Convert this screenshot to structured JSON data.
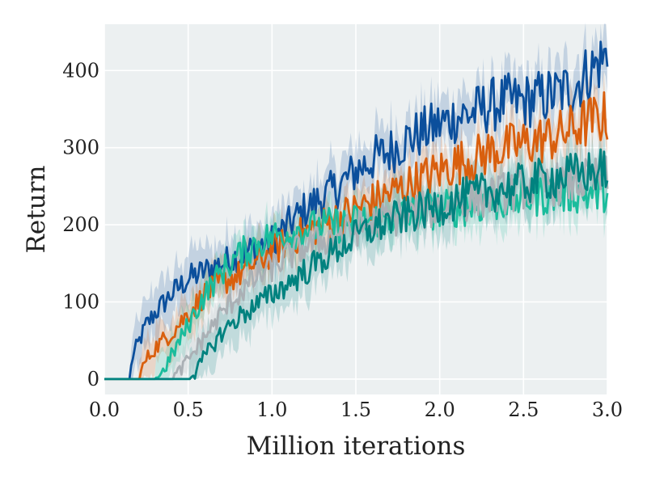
{
  "chart_data": {
    "type": "line",
    "title": "",
    "xlabel": "Million iterations",
    "ylabel": "Return",
    "xlim": [
      0.0,
      3.0
    ],
    "ylim": [
      -20,
      460
    ],
    "xticks": [
      0.0,
      0.5,
      1.0,
      1.5,
      2.0,
      2.5,
      3.0
    ],
    "xtick_labels": [
      "0.0",
      "0.5",
      "1.0",
      "1.5",
      "2.0",
      "2.5",
      "3.0"
    ],
    "yticks": [
      0,
      100,
      200,
      300,
      400
    ],
    "ytick_labels": [
      "0",
      "100",
      "200",
      "300",
      "400"
    ],
    "grid": true,
    "background": "#ecf0f1",
    "grid_color": "#ffffff",
    "legend": "none",
    "series": [
      {
        "color": "#0b4f9c",
        "band": 30,
        "x": [
          0,
          0.15,
          0.17,
          0.25,
          0.3,
          0.4,
          0.5,
          0.6,
          0.7,
          0.8,
          0.9,
          1.0,
          1.1,
          1.2,
          1.3,
          1.4,
          1.5,
          1.6,
          1.7,
          1.8,
          1.9,
          2.0,
          2.1,
          2.2,
          2.3,
          2.4,
          2.5,
          2.6,
          2.7,
          2.8,
          2.9,
          3.0
        ],
        "y": [
          0,
          0,
          30,
          70,
          85,
          110,
          130,
          140,
          150,
          160,
          170,
          180,
          200,
          220,
          235,
          250,
          270,
          285,
          295,
          310,
          320,
          330,
          340,
          345,
          355,
          360,
          360,
          365,
          370,
          380,
          400,
          420
        ]
      },
      {
        "color": "#d95f0e",
        "band": 25,
        "x": [
          0,
          0.2,
          0.25,
          0.3,
          0.4,
          0.5,
          0.6,
          0.7,
          0.8,
          0.9,
          1.0,
          1.1,
          1.2,
          1.3,
          1.4,
          1.5,
          1.6,
          1.7,
          1.8,
          1.9,
          2.0,
          2.1,
          2.2,
          2.3,
          2.4,
          2.5,
          2.6,
          2.7,
          2.8,
          2.9,
          3.0
        ],
        "y": [
          0,
          0,
          25,
          40,
          60,
          85,
          110,
          125,
          135,
          150,
          165,
          180,
          190,
          200,
          210,
          220,
          230,
          240,
          250,
          260,
          270,
          280,
          285,
          295,
          300,
          305,
          310,
          315,
          325,
          335,
          340
        ]
      },
      {
        "color": "#1abc9c",
        "band": 25,
        "x": [
          0,
          0.3,
          0.35,
          0.4,
          0.5,
          0.6,
          0.7,
          0.8,
          0.9,
          1.0,
          1.1,
          1.2,
          1.3,
          1.4,
          1.5,
          1.6,
          1.7,
          1.8,
          1.9,
          2.0,
          2.1,
          2.2,
          2.3,
          2.4,
          2.5,
          2.6,
          2.7,
          2.8,
          2.9,
          3.0
        ],
        "y": [
          0,
          0,
          10,
          30,
          70,
          110,
          140,
          160,
          175,
          185,
          190,
          195,
          198,
          200,
          203,
          206,
          210,
          213,
          216,
          220,
          222,
          225,
          228,
          232,
          235,
          238,
          240,
          242,
          240,
          245
        ]
      },
      {
        "color": "#aab0b5",
        "band": 20,
        "x": [
          0,
          0.4,
          0.45,
          0.5,
          0.6,
          0.7,
          0.8,
          0.9,
          1.0,
          1.1,
          1.2,
          1.3,
          1.4,
          1.5,
          1.6,
          1.7,
          1.8,
          1.9,
          2.0,
          2.1,
          2.2,
          2.3,
          2.4,
          2.5,
          2.6,
          2.7,
          2.8,
          2.9,
          3.0
        ],
        "y": [
          0,
          0,
          10,
          25,
          55,
          85,
          110,
          130,
          145,
          160,
          172,
          180,
          188,
          195,
          202,
          208,
          213,
          218,
          222,
          228,
          232,
          237,
          242,
          247,
          250,
          253,
          255,
          258,
          262
        ]
      },
      {
        "color": "#00827f",
        "band": 30,
        "x": [
          0,
          0.5,
          0.55,
          0.6,
          0.7,
          0.8,
          0.9,
          1.0,
          1.1,
          1.2,
          1.3,
          1.4,
          1.5,
          1.6,
          1.7,
          1.8,
          1.9,
          2.0,
          2.1,
          2.2,
          2.3,
          2.4,
          2.5,
          2.6,
          2.7,
          2.8,
          2.9,
          3.0
        ],
        "y": [
          0,
          0,
          10,
          30,
          60,
          80,
          95,
          110,
          125,
          140,
          155,
          170,
          185,
          195,
          205,
          212,
          218,
          225,
          232,
          238,
          243,
          248,
          253,
          258,
          262,
          265,
          268,
          272
        ]
      }
    ]
  }
}
